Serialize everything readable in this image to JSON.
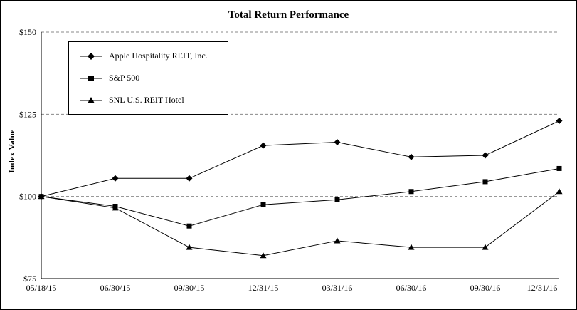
{
  "title": "Total Return Performance",
  "chart_data": {
    "type": "line",
    "title": "Total Return Performance",
    "xlabel": "",
    "ylabel": "Index Value",
    "x": [
      "05/18/15",
      "06/30/15",
      "09/30/15",
      "12/31/15",
      "03/31/16",
      "06/30/16",
      "09/30/16",
      "12/31/16"
    ],
    "series": [
      {
        "name": "Apple Hospitality REIT, Inc.",
        "marker": "diamond",
        "color": "#000000",
        "values": [
          100,
          105.5,
          105.5,
          115.5,
          116.5,
          112,
          112.5,
          123
        ]
      },
      {
        "name": "S&P 500",
        "marker": "square",
        "color": "#000000",
        "values": [
          100,
          97,
          91,
          97.5,
          99,
          101.5,
          104.5,
          108.5
        ]
      },
      {
        "name": "SNL U.S. REIT Hotel",
        "marker": "triangle",
        "color": "#000000",
        "values": [
          100,
          96.5,
          84.5,
          82,
          86.5,
          84.5,
          84.5,
          101.5
        ]
      }
    ],
    "ylim": [
      75,
      150
    ],
    "yticks": [
      75,
      100,
      125,
      150
    ],
    "ytick_labels": [
      "$75",
      "$100",
      "$125",
      "$150"
    ],
    "gridlines": [
      100,
      125,
      150
    ],
    "grid_style": "dashed-horizontal",
    "legend_position": "top-left-inside",
    "line_color": "#000000",
    "background": "#ffffff"
  }
}
